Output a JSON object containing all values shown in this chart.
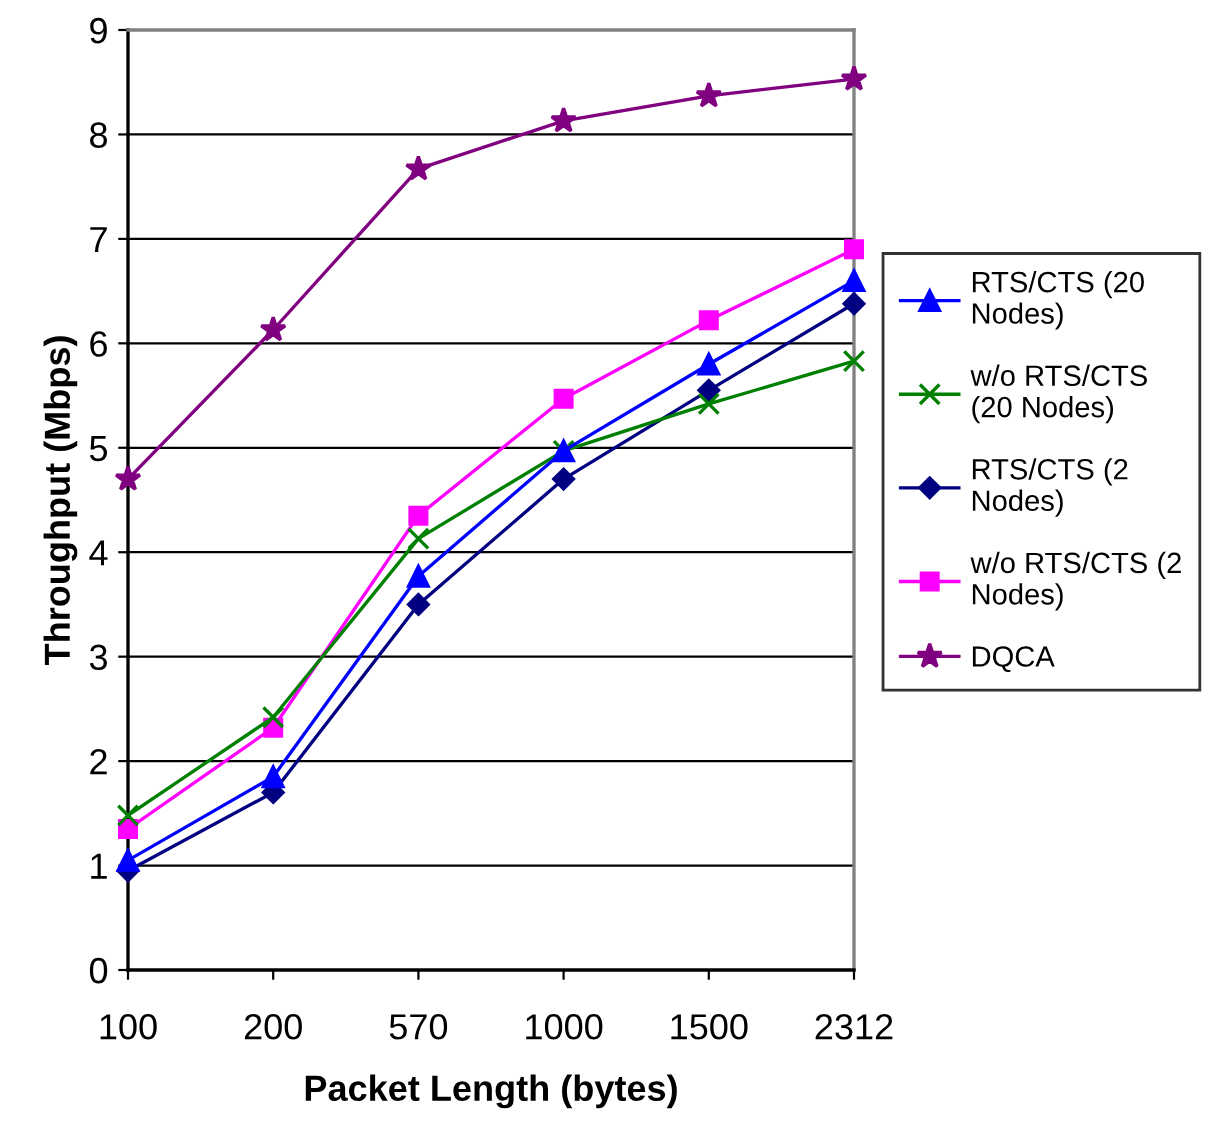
{
  "chart_data": {
    "type": "line",
    "xlabel": "Packet Length (bytes)",
    "ylabel": "Throughput (Mbps)",
    "categories": [
      "100",
      "200",
      "570",
      "1000",
      "1500",
      "2312"
    ],
    "series": [
      {
        "name": "RTS/CTS (20 Nodes)",
        "color": "#0000ff",
        "marker": "triangle",
        "values": [
          1.05,
          1.85,
          3.77,
          4.97,
          5.8,
          6.6
        ]
      },
      {
        "name": "w/o RTS/CTS (20 Nodes)",
        "color": "#008000",
        "marker": "cross",
        "values": [
          1.48,
          2.42,
          4.13,
          4.97,
          5.42,
          5.83
        ]
      },
      {
        "name": "RTS/CTS (2 Nodes)",
        "color": "#000080",
        "marker": "diamond",
        "values": [
          0.95,
          1.7,
          3.5,
          4.7,
          5.55,
          6.38
        ]
      },
      {
        "name": "w/o RTS/CTS (2 Nodes)",
        "color": "#ff00ff",
        "marker": "square",
        "values": [
          1.35,
          2.32,
          4.35,
          5.47,
          6.22,
          6.9
        ]
      },
      {
        "name": "DQCA",
        "color": "#800080",
        "marker": "star",
        "values": [
          4.7,
          6.13,
          7.67,
          8.13,
          8.37,
          8.53
        ]
      }
    ],
    "ylim": [
      0,
      9
    ],
    "yticks": [
      0,
      1,
      2,
      3,
      4,
      5,
      6,
      7,
      8,
      9
    ],
    "grid": "y",
    "legend": "right",
    "line_style": "solid"
  }
}
